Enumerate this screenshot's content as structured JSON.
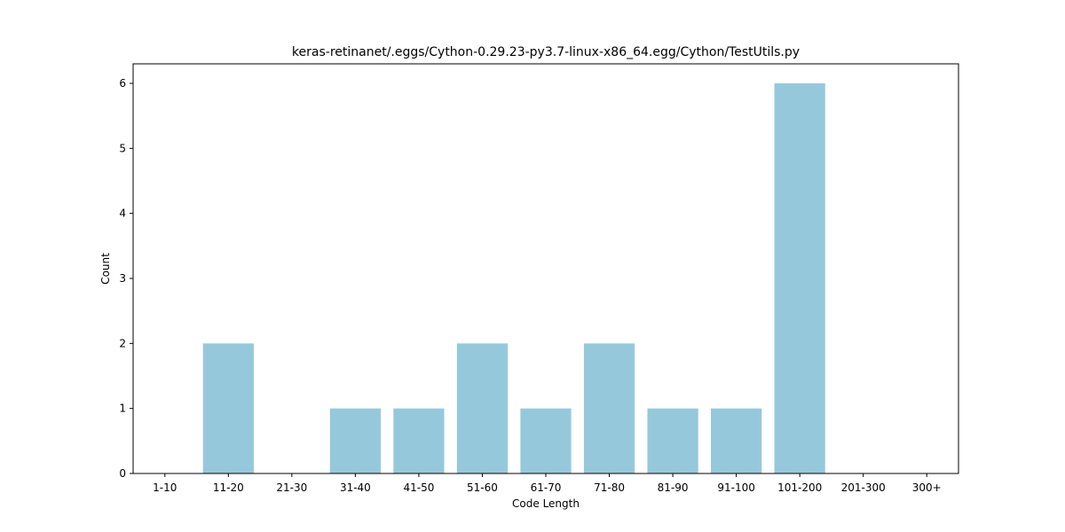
{
  "chart_data": {
    "type": "bar",
    "title": "keras-retinanet/.eggs/Cython-0.29.23-py3.7-linux-x86_64.egg/Cython/TestUtils.py",
    "xlabel": "Code Length",
    "ylabel": "Count",
    "categories": [
      "1-10",
      "11-20",
      "21-30",
      "31-40",
      "41-50",
      "51-60",
      "61-70",
      "71-80",
      "81-90",
      "91-100",
      "101-200",
      "201-300",
      "300+"
    ],
    "values": [
      0,
      2,
      0,
      1,
      1,
      2,
      1,
      2,
      1,
      1,
      6,
      0,
      0
    ],
    "ylim": [
      0,
      6.3
    ],
    "yticks": [
      0,
      1,
      2,
      3,
      4,
      5,
      6
    ],
    "grid": false,
    "bar_color": "#96c8dc"
  }
}
